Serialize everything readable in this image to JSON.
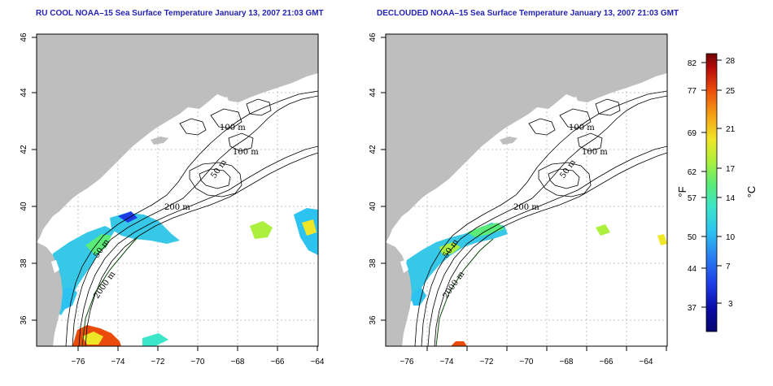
{
  "panels": [
    {
      "title": "RU COOL NOAA–15 Sea Surface Temperature January 13, 2007 21:03 GMT",
      "contours": [
        "100 m",
        "100 m",
        "50 m",
        "200 m",
        "50 m",
        "2000 m"
      ]
    },
    {
      "title": "DECLOUDED NOAA–15 Sea Surface Temperature January 13, 2007 21:03 GMT",
      "contours": [
        "100 m",
        "100 m",
        "50 m",
        "200 m",
        "50 m",
        "2000 m"
      ]
    }
  ],
  "axes": {
    "x_ticks": [
      "−76",
      "−74",
      "−72",
      "−70",
      "−68",
      "−66",
      "−64"
    ],
    "y_ticks": [
      "36",
      "38",
      "40",
      "42",
      "44",
      "46"
    ]
  },
  "colorbar": {
    "fahrenheit_ticks": [
      "82",
      "77",
      "69",
      "62",
      "57",
      "50",
      "44",
      "37"
    ],
    "celsius_ticks": [
      "28",
      "25",
      "21",
      "17",
      "14",
      "10",
      "7",
      "3"
    ],
    "fahrenheit_unit": "°F",
    "celsius_unit": "°C",
    "colors": [
      "#06066e",
      "#0a0aa5",
      "#1e3ce6",
      "#2a7ff0",
      "#2dc3f0",
      "#3ce6c8",
      "#5aeb78",
      "#aaf03c",
      "#f0e628",
      "#f5a014",
      "#eb4b0a",
      "#b40a0a",
      "#6e0505"
    ]
  },
  "colors": {
    "land": "#bebebe",
    "ocean": "#ffffff",
    "title": "#2323b4",
    "grid": "#b4b4b4"
  }
}
